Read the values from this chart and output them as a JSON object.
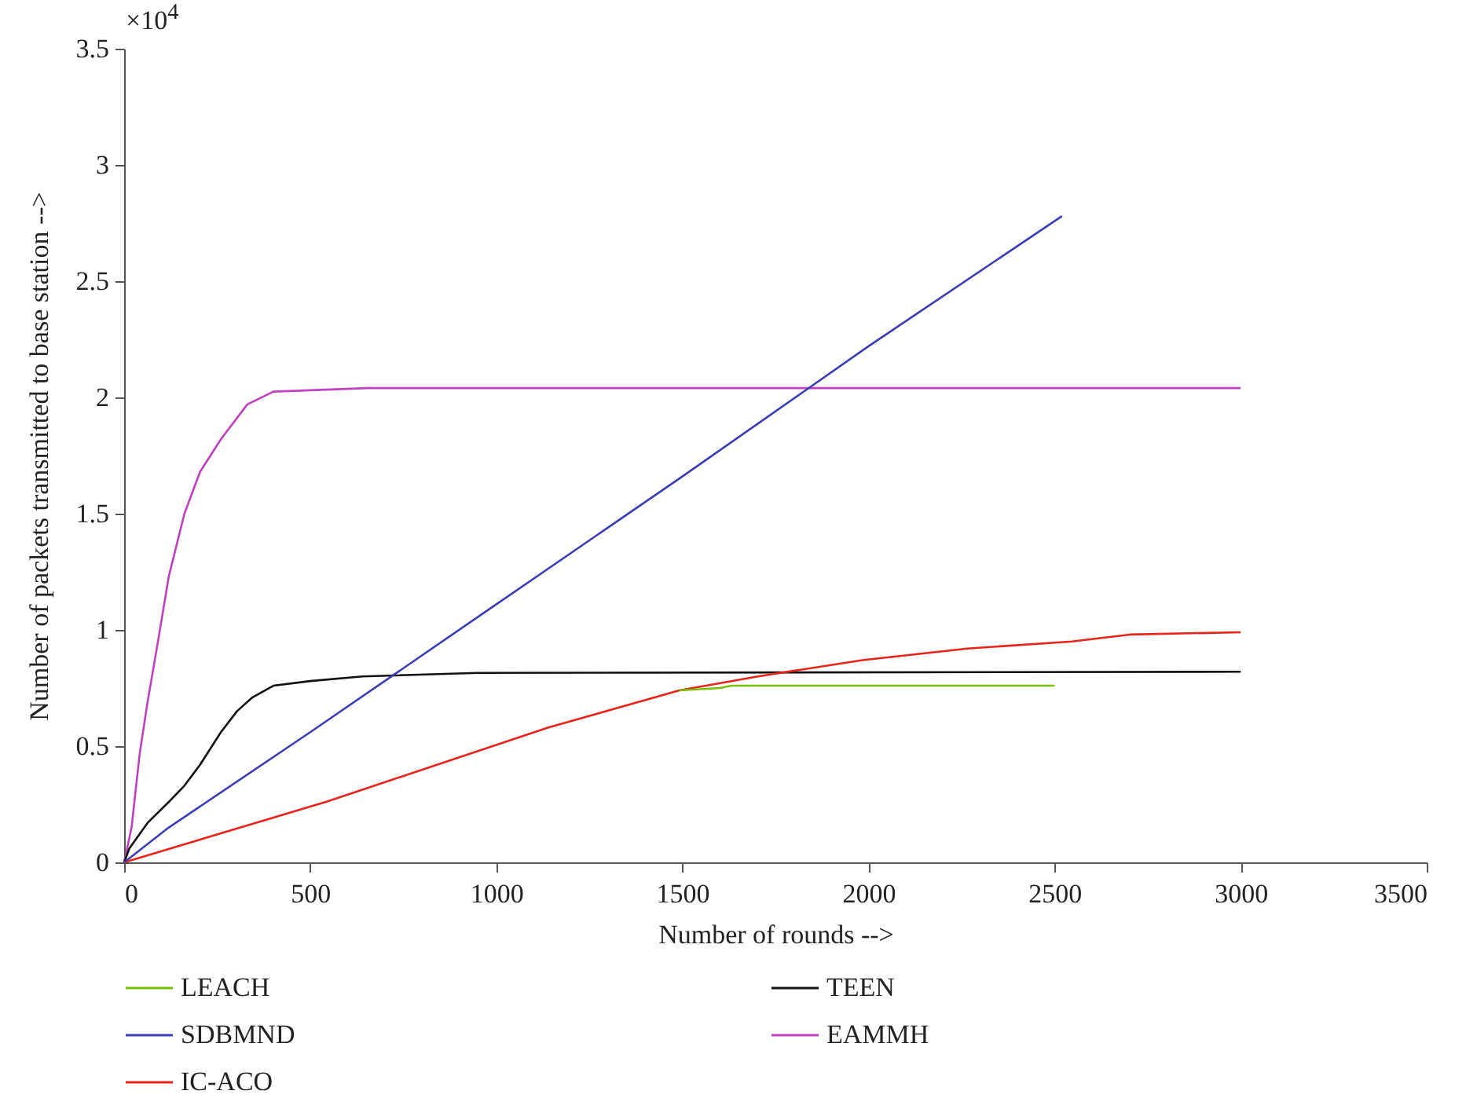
{
  "chart_data": {
    "type": "line",
    "xlabel": "Number of rounds -->",
    "ylabel": "Number of packets transmitted to base station -->",
    "xlim": [
      0,
      3500
    ],
    "xticks": [
      0,
      500,
      1000,
      1500,
      2000,
      2500,
      3000,
      3500
    ],
    "ylim": [
      0,
      3.5
    ],
    "yticks": [
      0,
      0.5,
      1,
      1.5,
      2,
      2.5,
      3,
      3.5
    ],
    "grid": false,
    "legend": "bottom",
    "marker": "none",
    "line_style": "solid",
    "annotations": [
      "×10$^{4}$"
    ],
    "series": [
      {
        "name": "LEACH",
        "color": "#77c000",
        "x": [
          1492,
          1600,
          1632,
          2500
        ],
        "values": [
          0.74,
          0.75,
          0.76,
          0.76
        ]
      },
      {
        "name": "SDBMND",
        "color": "#3c3cb4",
        "x": [
          0,
          120,
          500,
          1000,
          1500,
          2000,
          2520
        ],
        "values": [
          0,
          0.15,
          0.56,
          1.11,
          1.66,
          2.22,
          2.78
        ]
      },
      {
        "name": "IC-ACO",
        "color": "#e8231a",
        "x": [
          0,
          542,
          1140,
          1492,
          1703,
          1984,
          2266,
          2547,
          2702,
          3000
        ],
        "values": [
          0,
          0.26,
          0.58,
          0.74,
          0.8,
          0.87,
          0.92,
          0.95,
          0.98,
          0.99
        ]
      },
      {
        "name": "TEEN",
        "color": "#111111",
        "x": [
          0,
          14,
          63,
          120,
          162,
          204,
          260,
          303,
          345,
          401,
          500,
          640,
          950,
          3000
        ],
        "values": [
          0,
          0.06,
          0.17,
          0.26,
          0.33,
          0.42,
          0.56,
          0.65,
          0.71,
          0.76,
          0.78,
          0.8,
          0.815,
          0.82
        ]
      },
      {
        "name": "EAMMH",
        "color": "#c040c0",
        "x": [
          0,
          20,
          42,
          63,
          92,
          120,
          162,
          204,
          260,
          331,
          401,
          654,
          3000
        ],
        "values": [
          0,
          0.15,
          0.47,
          0.69,
          0.96,
          1.23,
          1.5,
          1.68,
          1.82,
          1.97,
          2.025,
          2.04,
          2.04
        ]
      }
    ]
  }
}
